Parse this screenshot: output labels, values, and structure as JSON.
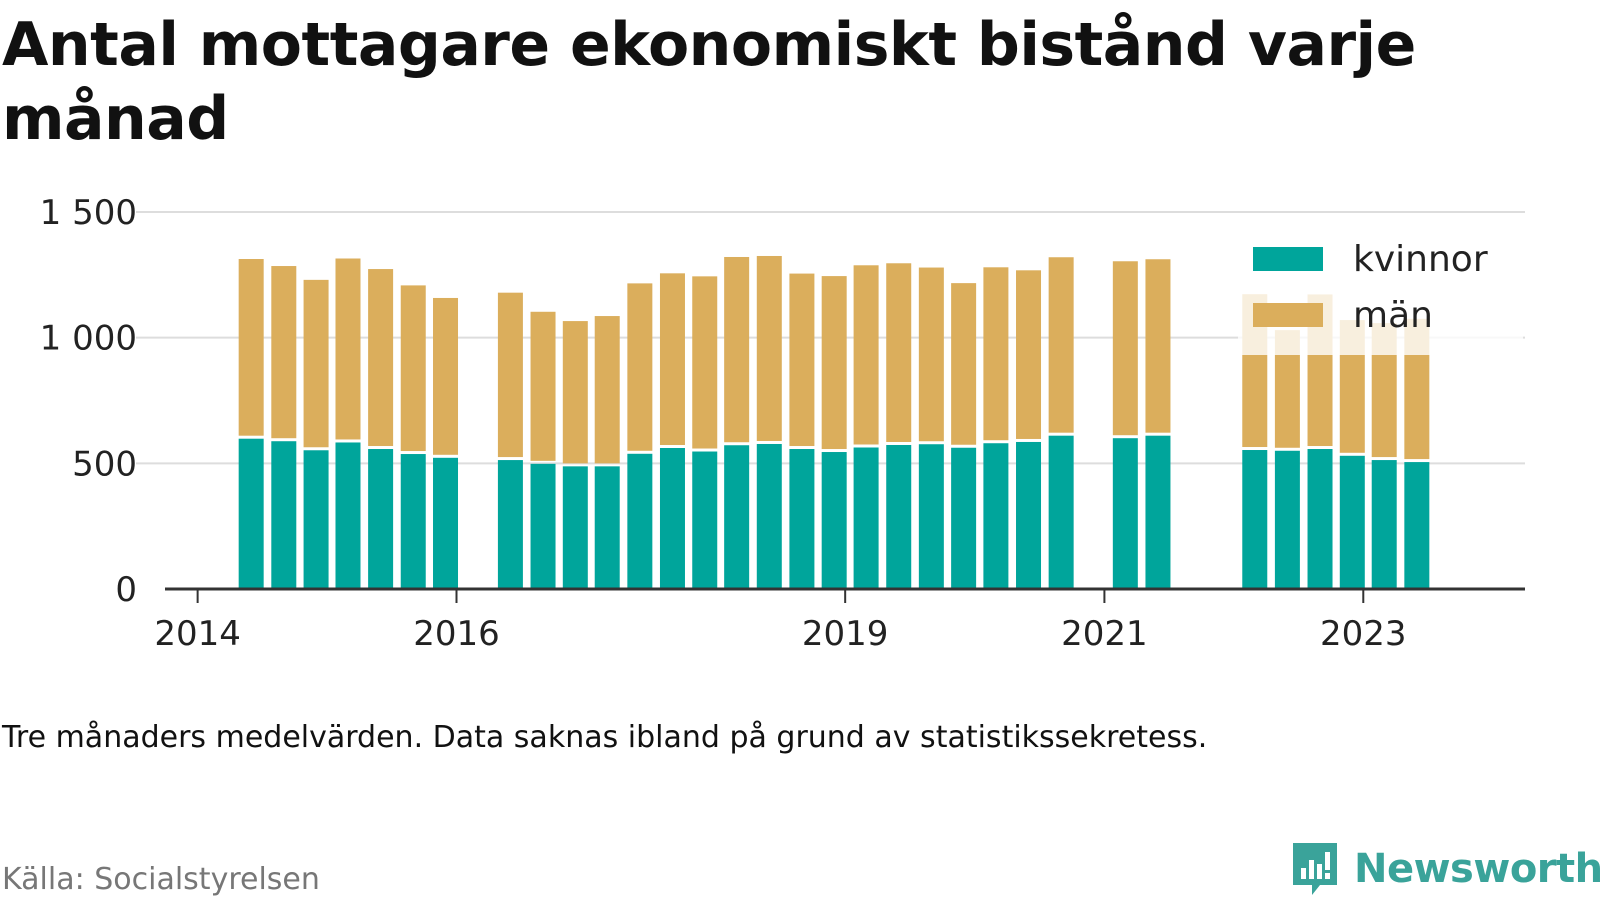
{
  "title": "Antal mottagare ekonomiskt bistånd varje månad",
  "note": "Tre månaders medelvärden. Data saknas ibland på grund av statistikssekretess.",
  "source": "Källa: Socialstyrelsen",
  "brand": {
    "name": "Newsworthy",
    "icon": "newsworthy-logo-icon"
  },
  "colors": {
    "kvinnor": "#00a59b",
    "man": "#dbae5c",
    "grid": "#dddddd",
    "axis": "#333333",
    "text": "#111111",
    "brand": "#3aa39a"
  },
  "chart_data": {
    "type": "bar",
    "stacked": true,
    "ylim": [
      0,
      1500
    ],
    "yticks": [
      0,
      500,
      1000,
      1500
    ],
    "ytick_labels": [
      "0",
      "500",
      "1 000",
      "1 500"
    ],
    "xlim": [
      "2013-10-01",
      "2024-04-01"
    ],
    "xticks": [
      {
        "date": "2014-01-01",
        "label": "2014"
      },
      {
        "date": "2016-01-01",
        "label": "2016"
      },
      {
        "date": "2019-01-01",
        "label": "2019"
      },
      {
        "date": "2021-01-01",
        "label": "2021"
      },
      {
        "date": "2023-01-01",
        "label": "2023"
      }
    ],
    "grid": true,
    "legend_position": "top-right",
    "x": [
      "2014-06",
      "2014-09",
      "2014-12",
      "2015-03",
      "2015-06",
      "2015-09",
      "2015-12",
      "2016-06",
      "2016-09",
      "2016-12",
      "2017-03",
      "2017-06",
      "2017-09",
      "2017-12",
      "2018-03",
      "2018-06",
      "2018-09",
      "2018-12",
      "2019-03",
      "2019-06",
      "2019-09",
      "2019-12",
      "2020-03",
      "2020-06",
      "2020-09",
      "2021-03",
      "2021-06",
      "2022-03",
      "2022-06",
      "2022-09",
      "2022-12",
      "2023-03",
      "2023-06"
    ],
    "series": [
      {
        "name": "kvinnor",
        "color": "#00a59b",
        "values": [
          598,
          588,
          552,
          583,
          557,
          537,
          522,
          513,
          498,
          488,
          488,
          538,
          561,
          547,
          572,
          577,
          557,
          545,
          563,
          573,
          576,
          562,
          580,
          585,
          610,
          600,
          610,
          553,
          550,
          557,
          530,
          513,
          505
        ]
      },
      {
        "name": "män",
        "color": "#dbae5c",
        "values": [
          715,
          697,
          678,
          732,
          716,
          671,
          636,
          666,
          605,
          578,
          598,
          678,
          695,
          697,
          749,
          748,
          698,
          700,
          725,
          723,
          703,
          655,
          700,
          683,
          710,
          704,
          702,
          620,
          480,
          615,
          540,
          545,
          570
        ]
      }
    ]
  }
}
